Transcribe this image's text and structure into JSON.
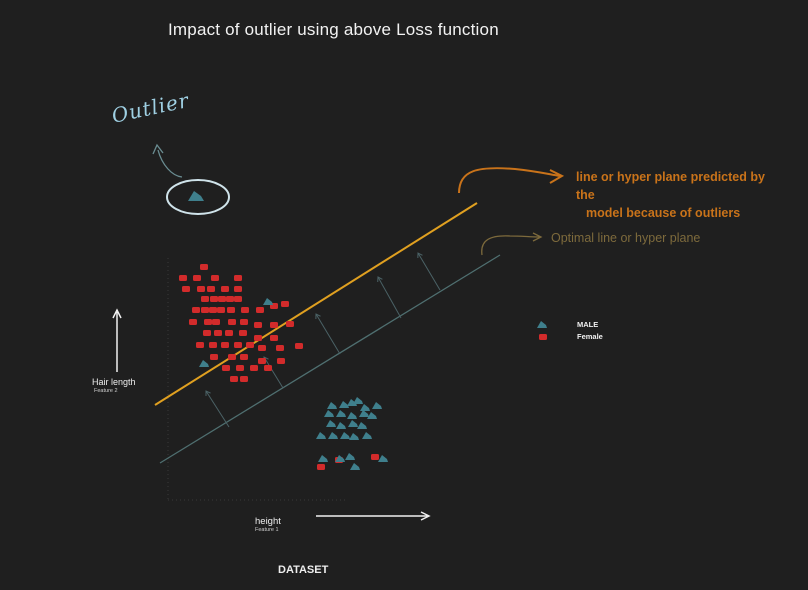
{
  "title": "Impact of outlier using above Loss function",
  "outlier_label": "Outlier",
  "predicted_line_label": {
    "line1": "line or hyper plane predicted by the",
    "line2": "model because of outliers"
  },
  "optimal_line_label": "Optimal  line or hyper plane",
  "legend": [
    {
      "label": "MALE",
      "icon": "teal-triangle-marker",
      "color": "#3f7f8c"
    },
    {
      "label": "Female",
      "icon": "red-square-marker",
      "color": "#d22b2b"
    }
  ],
  "y_axis": {
    "label": "Hair length",
    "sublabel": "Feature 2"
  },
  "x_axis": {
    "label": "height",
    "sublabel": "Feature 1"
  },
  "caption": "DATASET",
  "colors": {
    "background": "#1f1f1f",
    "predicted_line": "#e0a020",
    "optimal_line": "#4f6f70",
    "female": "#d22b2b",
    "male": "#3f7f8c",
    "outlier_circle": "#cfe3ea",
    "annotation_arrow": "#c9731a"
  }
}
